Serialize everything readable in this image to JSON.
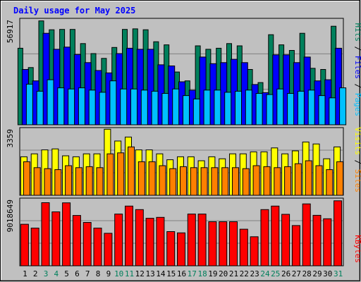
{
  "chart_data": [
    {
      "type": "bar",
      "title": "Daily usage for May 2025",
      "y_max_label": "56917",
      "legend": [
        "Pages",
        "Files",
        "Hits"
      ],
      "legend_separator": " / ",
      "colors": {
        "Hits": "#00805c",
        "Files": "#0000ff",
        "Pages": "#00c0ff"
      },
      "grid": true,
      "categories": [
        "1",
        "2",
        "3",
        "4",
        "5",
        "6",
        "7",
        "8",
        "9",
        "10",
        "11",
        "12",
        "13",
        "14",
        "15",
        "16",
        "17",
        "18",
        "19",
        "20",
        "21",
        "22",
        "23",
        "24",
        "25",
        "26",
        "27",
        "28",
        "29",
        "30",
        "31"
      ],
      "weekend_days": [
        "3",
        "4",
        "10",
        "11",
        "17",
        "18",
        "24",
        "25",
        "31"
      ],
      "ylim": [
        0,
        56917
      ],
      "series": [
        {
          "name": "Hits",
          "values": [
            41500,
            31000,
            56300,
            51500,
            51700,
            51700,
            44000,
            38600,
            36000,
            41900,
            51700,
            52000,
            51500,
            45000,
            43300,
            28600,
            23800,
            42800,
            40900,
            41500,
            44000,
            42800,
            30000,
            22900,
            48800,
            43300,
            40300,
            49600,
            30600,
            30000,
            53400
          ]
        },
        {
          "name": "Files",
          "values": [
            30000,
            23800,
            49600,
            40900,
            42100,
            38100,
            33700,
            29400,
            28100,
            38600,
            41500,
            40900,
            40900,
            32500,
            31900,
            23300,
            18700,
            36700,
            33100,
            33700,
            35500,
            33700,
            21800,
            17400,
            37900,
            37900,
            33700,
            36700,
            23800,
            24400,
            41500
          ]
        },
        {
          "name": "Pages",
          "values": [
            22000,
            18200,
            24400,
            20000,
            19400,
            20000,
            18800,
            17600,
            23800,
            19400,
            19400,
            18800,
            18200,
            17000,
            19400,
            15800,
            14000,
            18800,
            18800,
            17600,
            18200,
            18800,
            17000,
            16400,
            19400,
            17000,
            18200,
            18800,
            15800,
            14600,
            20000
          ]
        }
      ]
    },
    {
      "type": "bar",
      "y_max_label": "3359",
      "legend": [
        "Sites",
        "Visits"
      ],
      "legend_separator": " / ",
      "colors": {
        "Visits": "#ffff00",
        "Sites": "#ff8000"
      },
      "grid": true,
      "ylim": [
        0,
        3359
      ],
      "series": [
        {
          "name": "Visits",
          "values": [
            1950,
            2100,
            2300,
            2350,
            2000,
            1950,
            2100,
            2100,
            3350,
            2750,
            2950,
            2300,
            2300,
            2100,
            1800,
            1950,
            1950,
            1750,
            1950,
            1850,
            2100,
            2100,
            2200,
            2200,
            2400,
            2100,
            2250,
            2700,
            2600,
            1850,
            2450
          ]
        },
        {
          "name": "Sites",
          "values": [
            1700,
            1400,
            1350,
            1300,
            1500,
            1400,
            1450,
            1400,
            2100,
            2150,
            2450,
            1700,
            1700,
            1500,
            1350,
            1450,
            1400,
            1400,
            1400,
            1400,
            1400,
            1350,
            1500,
            1450,
            1400,
            1450,
            1600,
            1750,
            1500,
            1300,
            1700
          ]
        }
      ]
    },
    {
      "type": "bar",
      "y_max_label": "9018649",
      "legend": [
        "KBytes"
      ],
      "colors": {
        "KBytes": "#ff0000"
      },
      "grid": true,
      "ylim": [
        0,
        9018649
      ],
      "series": [
        {
          "name": "KBytes",
          "values": [
            5650000,
            5130000,
            8590000,
            7340000,
            8570000,
            6850000,
            5900000,
            5130000,
            4420000,
            7040000,
            8130000,
            7650000,
            6470000,
            6590000,
            4650000,
            4480000,
            7040000,
            7040000,
            6000000,
            6000000,
            6000000,
            4980000,
            3950000,
            7650000,
            8130000,
            7000000,
            5480000,
            8420000,
            6870000,
            6400000,
            8850000
          ]
        }
      ]
    }
  ]
}
